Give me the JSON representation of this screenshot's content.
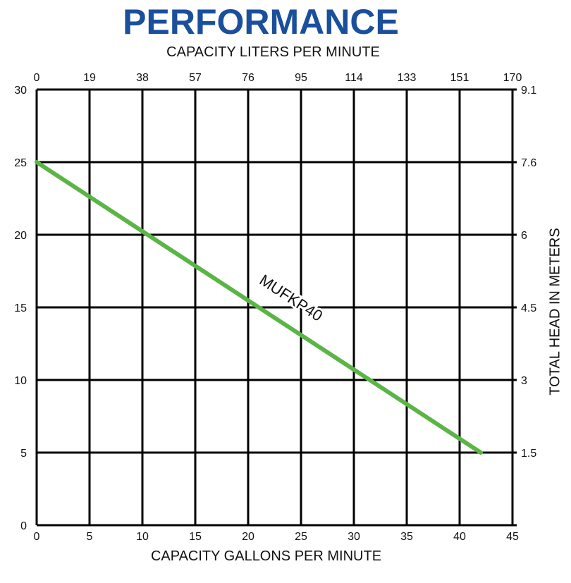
{
  "colors": {
    "title": "#1a4f9c",
    "grid": "#000000",
    "series": "#5ab546"
  },
  "chart_data": {
    "type": "line",
    "title": "PERFORMANCE",
    "xlabel": "CAPACITY GALLONS PER MINUTE",
    "x2label": "CAPACITY LITERS PER MINUTE",
    "ylabel": "",
    "y2label": "TOTAL HEAD IN METERS",
    "xlim": [
      0,
      45
    ],
    "ylim": [
      0,
      30
    ],
    "grid": true,
    "x_ticks": [
      "0",
      "5",
      "10",
      "15",
      "20",
      "25",
      "30",
      "35",
      "40",
      "45"
    ],
    "x2_ticks": [
      "0",
      "19",
      "38",
      "57",
      "76",
      "95",
      "114",
      "133",
      "151",
      "170"
    ],
    "y_ticks": [
      "0",
      "5",
      "10",
      "15",
      "20",
      "25",
      "30"
    ],
    "y2_ticks": [
      "",
      "1.5",
      "3",
      "4.5",
      "6",
      "7.6",
      "9.1"
    ],
    "series": [
      {
        "name": "MUFKP40",
        "x": [
          0,
          42
        ],
        "y": [
          25,
          5
        ]
      }
    ]
  }
}
